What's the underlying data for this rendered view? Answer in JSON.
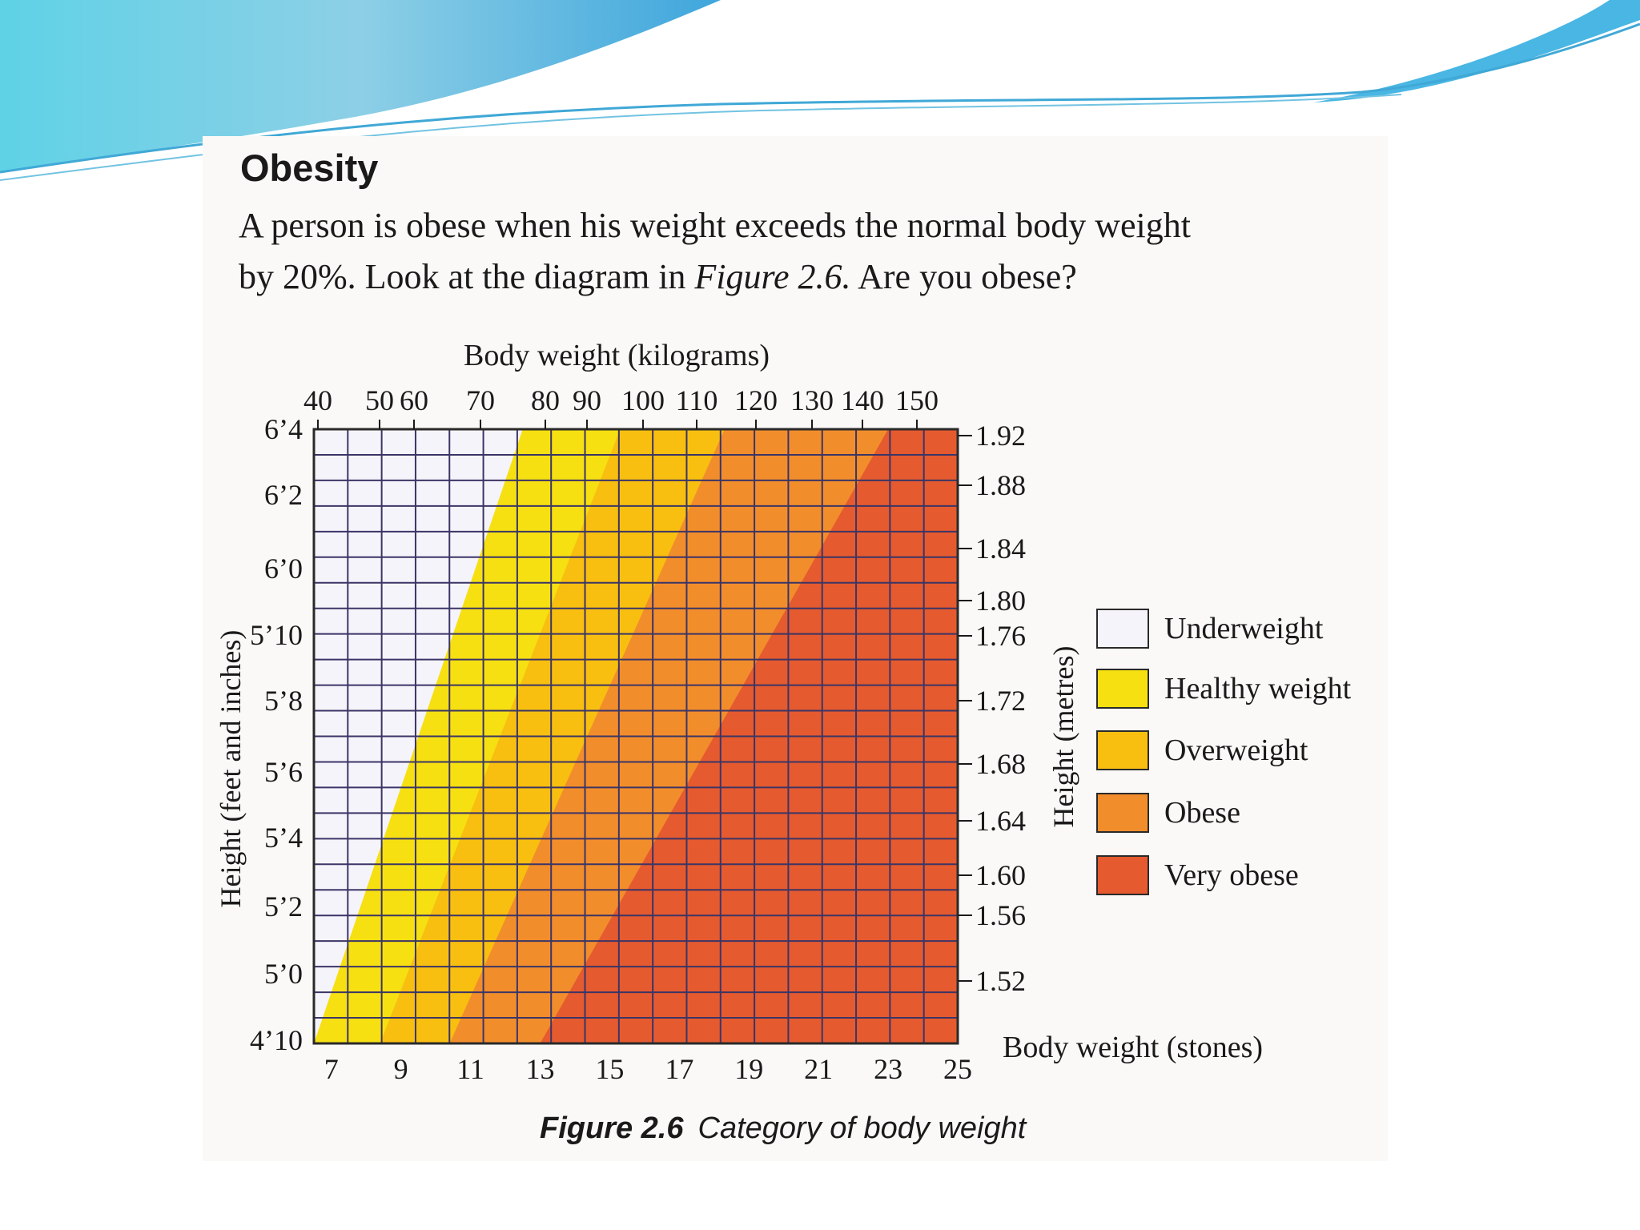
{
  "heading": "Obesity",
  "paragraph": {
    "line1": "A person is obese when his weight exceeds  the normal body weight",
    "line2_before": "by 20%. Look at the diagram in ",
    "line2_italic": "Figure 2.6.",
    "line2_after": " Are you obese?"
  },
  "caption": {
    "label": "Figure 2.6",
    "text": "Category of body weight"
  },
  "colors": {
    "underweight": "#f6f4fb",
    "healthy": "#f6e012",
    "overweight": "#f8bf10",
    "obese": "#f28d2c",
    "very_obese": "#e55a2f",
    "grid": "#3b3566"
  },
  "chart_data": {
    "type": "heatmap",
    "x_top_label": "Body weight (kilograms)",
    "x_top_ticks": [
      "40",
      "50",
      "60",
      "70",
      "80",
      "90",
      "100",
      "110",
      "120",
      "130",
      "140",
      "150"
    ],
    "x_bottom_label": "Body weight (stones)",
    "x_bottom_ticks": [
      "7",
      "9",
      "11",
      "13",
      "15",
      "17",
      "19",
      "21",
      "23",
      "25"
    ],
    "xlim_stones": [
      6.5,
      25
    ],
    "y_left_label": "Height (feet and inches)",
    "y_left_ticks": [
      "6’4",
      "6’2",
      "6’0",
      "5’10",
      "5’8",
      "5’6",
      "5’4",
      "5’2",
      "5’0",
      "4’10"
    ],
    "y_right_label": "Height (metres)",
    "y_right_ticks": [
      "1.92",
      "1.88",
      "1.84",
      "1.80",
      "1.76",
      "1.72",
      "1.68",
      "1.64",
      "1.60",
      "1.56",
      "1.52"
    ],
    "ylim_inches": [
      58,
      76
    ],
    "categories": [
      {
        "key": "underweight",
        "name": "Underweight"
      },
      {
        "key": "healthy",
        "name": "Healthy weight"
      },
      {
        "key": "overweight",
        "name": "Overweight"
      },
      {
        "key": "obese",
        "name": "Obese"
      },
      {
        "key": "very_obese",
        "name": "Very obese"
      }
    ],
    "boundaries_stones": [
      {
        "name": "Healthy weight",
        "at_4_10": 6.5,
        "at_6_4": 12.5
      },
      {
        "name": "Overweight",
        "at_4_10": 8.4,
        "at_6_4": 15.3
      },
      {
        "name": "Obese",
        "at_4_10": 10.4,
        "at_6_4": 18.3
      },
      {
        "name": "Very obese",
        "at_4_10": 13.0,
        "at_6_4": 23.0
      }
    ],
    "legend_position": "right"
  }
}
